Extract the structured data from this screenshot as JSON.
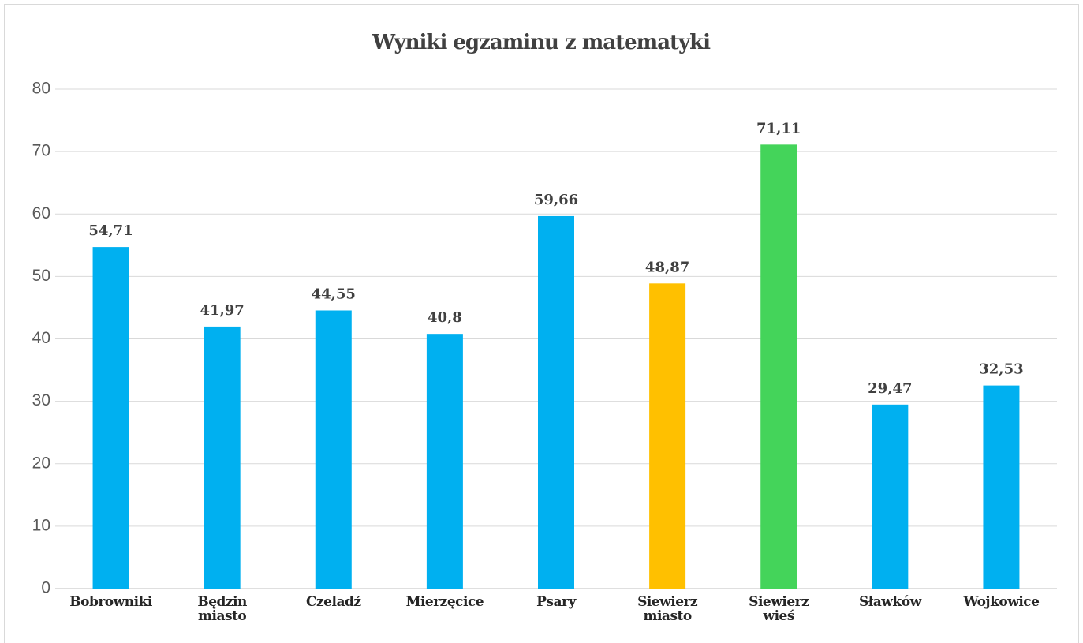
{
  "chart_data": {
    "type": "bar",
    "title": "Wyniki egzaminu z matematyki",
    "categories": [
      "Bobrowniki",
      "Będzin miasto",
      "Czeladź",
      "Mierzęcice",
      "Psary",
      "Siewierz miasto",
      "Siewierz wieś",
      "Sławków",
      "Wojkowice"
    ],
    "values": [
      54.71,
      41.97,
      44.55,
      40.8,
      59.66,
      48.87,
      71.11,
      29.47,
      32.53
    ],
    "value_labels": [
      "54,71",
      "41,97",
      "44,55",
      "40,8",
      "59,66",
      "48,87",
      "71,11",
      "29,47",
      "32,53"
    ],
    "colors": [
      "#00b0f0",
      "#00b0f0",
      "#00b0f0",
      "#00b0f0",
      "#00b0f0",
      "#ffc000",
      "#44d45a",
      "#00b0f0",
      "#00b0f0"
    ],
    "ylim": [
      0,
      80
    ],
    "yticks": [
      0,
      10,
      20,
      30,
      40,
      50,
      60,
      70,
      80
    ],
    "grid": true
  }
}
